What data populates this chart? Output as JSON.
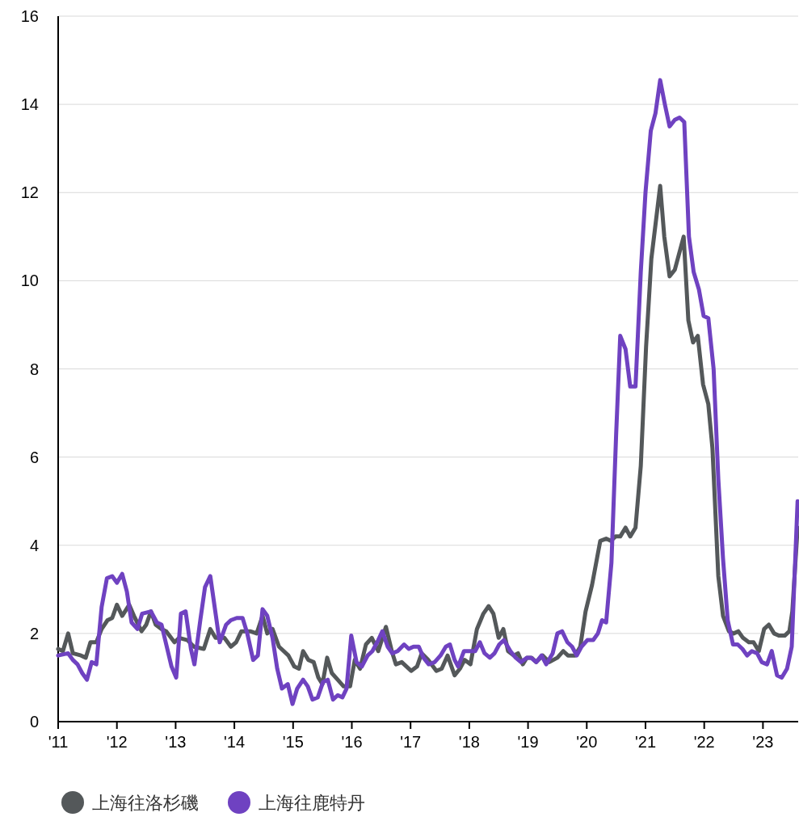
{
  "chart_data": {
    "type": "line",
    "xlim": [
      2011,
      2023.6
    ],
    "ylim": [
      0,
      16
    ],
    "xticks": [
      {
        "value": 2011,
        "label": "'11"
      },
      {
        "value": 2012,
        "label": "'12"
      },
      {
        "value": 2013,
        "label": "'13"
      },
      {
        "value": 2014,
        "label": "'14"
      },
      {
        "value": 2015,
        "label": "'15"
      },
      {
        "value": 2016,
        "label": "'16"
      },
      {
        "value": 2017,
        "label": "'17"
      },
      {
        "value": 2018,
        "label": "'18"
      },
      {
        "value": 2019,
        "label": "'19"
      },
      {
        "value": 2020,
        "label": "'20"
      },
      {
        "value": 2021,
        "label": "'21"
      },
      {
        "value": 2022,
        "label": "'22"
      },
      {
        "value": 2023,
        "label": "'23"
      }
    ],
    "yticks": [
      0,
      2,
      4,
      6,
      8,
      10,
      12,
      14,
      16
    ],
    "grid": "y",
    "legend": "bottom left",
    "marker": "none",
    "line_style": "solid",
    "series": [
      {
        "name": "上海往洛杉磯",
        "color": "#54585a",
        "x": [
          2011.0,
          2011.08,
          2011.17,
          2011.25,
          2011.39,
          2011.47,
          2011.55,
          2011.65,
          2011.74,
          2011.84,
          2011.92,
          2012.0,
          2012.09,
          2012.21,
          2012.29,
          2012.42,
          2012.5,
          2012.58,
          2012.66,
          2012.76,
          2012.84,
          2012.98,
          2013.06,
          2013.2,
          2013.31,
          2013.48,
          2013.59,
          2013.68,
          2013.83,
          2013.94,
          2014.03,
          2014.12,
          2014.27,
          2014.38,
          2014.48,
          2014.56,
          2014.65,
          2014.76,
          2014.92,
          2015.02,
          2015.1,
          2015.17,
          2015.26,
          2015.35,
          2015.43,
          2015.5,
          2015.58,
          2015.66,
          2015.76,
          2015.86,
          2015.97,
          2016.05,
          2016.14,
          2016.24,
          2016.34,
          2016.45,
          2016.58,
          2016.68,
          2016.75,
          2016.85,
          2017.01,
          2017.11,
          2017.19,
          2017.3,
          2017.44,
          2017.53,
          2017.63,
          2017.75,
          2017.84,
          2017.92,
          2018.02,
          2018.13,
          2018.24,
          2018.33,
          2018.41,
          2018.5,
          2018.58,
          2018.66,
          2018.76,
          2018.83,
          2018.91,
          2018.98,
          2019.06,
          2019.14,
          2019.25,
          2019.36,
          2019.5,
          2019.6,
          2019.68,
          2019.8,
          2019.89,
          2019.98,
          2020.09,
          2020.23,
          2020.33,
          2020.41,
          2020.49,
          2020.57,
          2020.66,
          2020.74,
          2020.83,
          2020.92,
          2021.01,
          2021.1,
          2021.25,
          2021.32,
          2021.41,
          2021.5,
          2021.65,
          2021.73,
          2021.81,
          2021.89,
          2021.98,
          2022.07,
          2022.14,
          2022.24,
          2022.32,
          2022.42,
          2022.5,
          2022.58,
          2022.66,
          2022.76,
          2022.84,
          2022.93,
          2023.02,
          2023.1,
          2023.19,
          2023.27,
          2023.37,
          2023.45,
          2023.5,
          2023.59
        ],
        "values": [
          1.65,
          1.6,
          2.0,
          1.55,
          1.5,
          1.45,
          1.8,
          1.8,
          2.1,
          2.3,
          2.35,
          2.65,
          2.4,
          2.65,
          2.4,
          2.05,
          2.2,
          2.5,
          2.2,
          2.1,
          2.05,
          1.8,
          1.9,
          1.85,
          1.7,
          1.65,
          2.1,
          1.9,
          1.9,
          1.7,
          1.8,
          2.05,
          2.05,
          2.0,
          2.4,
          2.0,
          2.1,
          1.7,
          1.5,
          1.25,
          1.2,
          1.6,
          1.4,
          1.35,
          1.0,
          0.85,
          1.45,
          1.1,
          0.95,
          0.8,
          0.8,
          1.4,
          1.2,
          1.75,
          1.9,
          1.6,
          2.15,
          1.6,
          1.3,
          1.35,
          1.15,
          1.25,
          1.55,
          1.4,
          1.15,
          1.2,
          1.5,
          1.05,
          1.2,
          1.4,
          1.3,
          2.1,
          2.45,
          2.62,
          2.45,
          1.9,
          2.1,
          1.6,
          1.5,
          1.55,
          1.3,
          1.45,
          1.45,
          1.35,
          1.5,
          1.35,
          1.45,
          1.6,
          1.5,
          1.5,
          1.7,
          2.5,
          3.1,
          4.1,
          4.15,
          4.1,
          4.2,
          4.2,
          4.4,
          4.2,
          4.4,
          5.8,
          8.5,
          10.5,
          12.15,
          11.0,
          10.1,
          10.25,
          11.0,
          9.1,
          8.6,
          8.75,
          7.65,
          7.2,
          6.2,
          3.3,
          2.4,
          2.05,
          2.0,
          2.05,
          1.9,
          1.8,
          1.8,
          1.6,
          2.1,
          2.2,
          2.0,
          1.95,
          1.95,
          2.05,
          2.5,
          4.4
        ]
      },
      {
        "name": "上海往鹿特丹",
        "color": "#6f42c1",
        "x": [
          2011.0,
          2011.17,
          2011.25,
          2011.33,
          2011.41,
          2011.49,
          2011.57,
          2011.65,
          2011.74,
          2011.83,
          2011.92,
          2012.0,
          2012.09,
          2012.17,
          2012.25,
          2012.35,
          2012.43,
          2012.58,
          2012.68,
          2012.76,
          2012.84,
          2012.93,
          2013.01,
          2013.09,
          2013.17,
          2013.26,
          2013.32,
          2013.42,
          2013.5,
          2013.59,
          2013.67,
          2013.75,
          2013.86,
          2013.94,
          2014.04,
          2014.14,
          2014.22,
          2014.32,
          2014.4,
          2014.48,
          2014.56,
          2014.65,
          2014.73,
          2014.81,
          2014.91,
          2014.99,
          2015.07,
          2015.17,
          2015.25,
          2015.33,
          2015.42,
          2015.51,
          2015.59,
          2015.68,
          2015.76,
          2015.84,
          2015.91,
          2015.99,
          2016.08,
          2016.17,
          2016.27,
          2016.35,
          2016.45,
          2016.52,
          2016.61,
          2016.69,
          2016.78,
          2016.89,
          2016.97,
          2017.05,
          2017.14,
          2017.22,
          2017.31,
          2017.41,
          2017.51,
          2017.6,
          2017.67,
          2017.75,
          2017.81,
          2017.91,
          2018.02,
          2018.1,
          2018.18,
          2018.26,
          2018.35,
          2018.43,
          2018.51,
          2018.59,
          2018.7,
          2018.79,
          2018.88,
          2018.98,
          2019.05,
          2019.14,
          2019.23,
          2019.31,
          2019.42,
          2019.5,
          2019.58,
          2019.67,
          2019.75,
          2019.83,
          2019.91,
          2020.01,
          2020.11,
          2020.19,
          2020.26,
          2020.33,
          2020.42,
          2020.5,
          2020.57,
          2020.66,
          2020.74,
          2020.83,
          2020.92,
          2021.0,
          2021.09,
          2021.17,
          2021.25,
          2021.33,
          2021.41,
          2021.5,
          2021.58,
          2021.66,
          2021.74,
          2021.82,
          2021.91,
          2021.99,
          2022.07,
          2022.16,
          2022.24,
          2022.32,
          2022.4,
          2022.49,
          2022.57,
          2022.65,
          2022.73,
          2022.81,
          2022.9,
          2022.98,
          2023.07,
          2023.15,
          2023.24,
          2023.32,
          2023.41,
          2023.49,
          2023.59
        ],
        "values": [
          1.5,
          1.55,
          1.4,
          1.3,
          1.1,
          0.95,
          1.35,
          1.3,
          2.6,
          3.25,
          3.3,
          3.15,
          3.35,
          2.95,
          2.25,
          2.1,
          2.45,
          2.5,
          2.25,
          2.2,
          1.75,
          1.25,
          1.0,
          2.45,
          2.5,
          1.65,
          1.3,
          2.3,
          3.05,
          3.3,
          2.55,
          1.8,
          2.2,
          2.3,
          2.35,
          2.35,
          2.0,
          1.4,
          1.5,
          2.55,
          2.4,
          1.9,
          1.2,
          0.75,
          0.85,
          0.4,
          0.75,
          0.95,
          0.8,
          0.5,
          0.55,
          0.9,
          0.95,
          0.5,
          0.6,
          0.55,
          0.75,
          1.95,
          1.35,
          1.25,
          1.5,
          1.6,
          1.85,
          2.05,
          1.7,
          1.55,
          1.6,
          1.75,
          1.65,
          1.7,
          1.7,
          1.45,
          1.3,
          1.35,
          1.5,
          1.7,
          1.75,
          1.4,
          1.25,
          1.6,
          1.6,
          1.6,
          1.8,
          1.55,
          1.45,
          1.55,
          1.75,
          1.85,
          1.6,
          1.45,
          1.35,
          1.45,
          1.45,
          1.35,
          1.5,
          1.3,
          1.55,
          2.0,
          2.05,
          1.8,
          1.7,
          1.5,
          1.7,
          1.85,
          1.85,
          2.0,
          2.3,
          2.25,
          3.6,
          6.5,
          8.75,
          8.45,
          7.6,
          7.6,
          10.2,
          12.0,
          13.4,
          13.8,
          14.55,
          14.0,
          13.5,
          13.65,
          13.7,
          13.6,
          11.0,
          10.2,
          9.8,
          9.2,
          9.15,
          8.0,
          5.5,
          3.7,
          2.3,
          1.75,
          1.75,
          1.65,
          1.5,
          1.6,
          1.55,
          1.35,
          1.3,
          1.6,
          1.05,
          1.0,
          1.2,
          1.7,
          5.0
        ]
      }
    ]
  }
}
